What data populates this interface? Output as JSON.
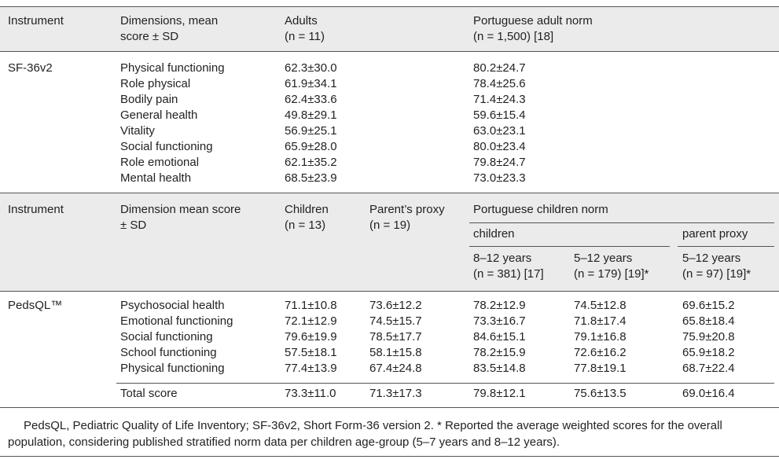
{
  "table1": {
    "headers": {
      "instrument": "Instrument",
      "dimensions": "Dimensions, mean score ± SD",
      "adults": "Adults",
      "adults_n": "(n = 11)",
      "norm": "Portuguese adult norm",
      "norm_n": "(n = 1,500) [18]"
    },
    "instrument": "SF-36v2",
    "rows": [
      [
        "Physical functioning",
        "62.3±30.0",
        "80.2±24.7"
      ],
      [
        "Role physical",
        "61.9±34.1",
        "78.4±25.6"
      ],
      [
        "Bodily pain",
        "62.4±33.6",
        "71.4±24.3"
      ],
      [
        "General health",
        "49.8±29.1",
        "59.6±15.4"
      ],
      [
        "Vitality",
        "56.9±25.1",
        "63.0±23.1"
      ],
      [
        "Social functioning",
        "65.9±28.0",
        "80.0±23.4"
      ],
      [
        "Role emotional",
        "62.1±35.2",
        "79.8±24.7"
      ],
      [
        "Mental health",
        "68.5±23.9",
        "73.0±23.3"
      ]
    ]
  },
  "table2": {
    "headers": {
      "instrument": "Instrument",
      "dimensions": "Dimension mean score ± SD",
      "children": "Children",
      "children_n": "(n = 13)",
      "parent": "Parent’s proxy",
      "parent_n": "(n = 19)",
      "norm": "Portuguese children norm",
      "norm_children": "children",
      "norm_parent": "parent proxy",
      "age1": "8–12 years",
      "age1_n": "(n = 381) [17]",
      "age2": "5–12 years",
      "age2_n": "(n = 179) [19]*",
      "age3": "5–12 years",
      "age3_n": "(n = 97) [19]*"
    },
    "instrument": "PedsQL™",
    "rows": [
      [
        "Psychosocial health",
        "71.1±10.8",
        "73.6±12.2",
        "78.2±12.9",
        "74.5±12.8",
        "69.6±15.2"
      ],
      [
        "Emotional functioning",
        "72.1±12.9",
        "74.5±15.7",
        "73.3±16.7",
        "71.8±17.4",
        "65.8±18.4"
      ],
      [
        "Social functioning",
        "79.6±19.9",
        "78.5±17.7",
        "84.6±15.1",
        "79.1±16.8",
        "75.9±20.8"
      ],
      [
        "School functioning",
        "57.5±18.1",
        "58.1±15.8",
        "78.2±15.9",
        "72.6±16.2",
        "65.9±18.2"
      ],
      [
        "Physical functioning",
        "77.4±13.9",
        "67.4±24.8",
        "83.5±14.8",
        "77.8±19.1",
        "68.7±22.4"
      ]
    ],
    "total": [
      "Total score",
      "73.3±11.0",
      "71.3±17.3",
      "79.8±12.1",
      "75.6±13.5",
      "69.0±16.4"
    ]
  },
  "footnote": "PedsQL, Pediatric Quality of Life Inventory; SF-36v2, Short Form-36 version 2. * Reported the average weighted scores for the overall population, considering published stratified norm data per children age-group (5–7 years and 8–12 years)."
}
